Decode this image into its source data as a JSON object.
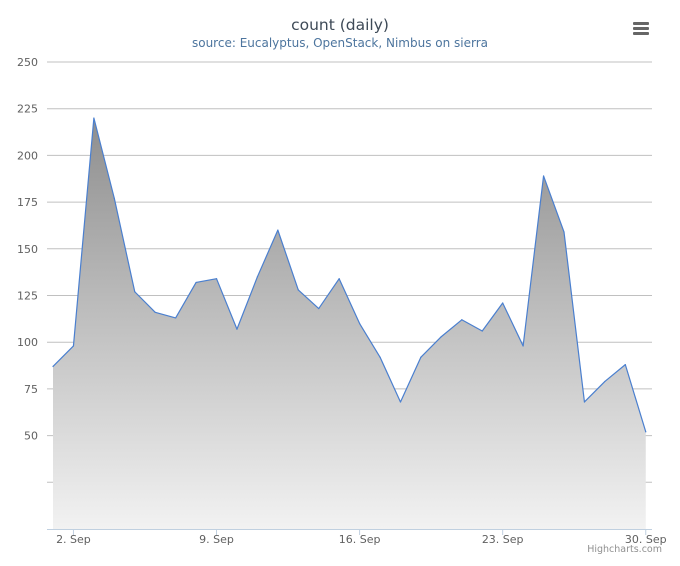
{
  "title": "count (daily)",
  "subtitle": "source: Eucalyptus, OpenStack, Nimbus on sierra",
  "credits": "Highcharts.com",
  "menu": {
    "icon": "hamburger-menu-icon"
  },
  "colors": {
    "line": "#4a7fcf",
    "fill_top": "#8e8e8e",
    "fill_bottom": "#f2f2f2",
    "grid": "#c0c0c0"
  },
  "chart_data": {
    "type": "area",
    "title": "count (daily)",
    "subtitle": "source: Eucalyptus, OpenStack, Nimbus on sierra",
    "x": [
      "1. Sep",
      "2. Sep",
      "3. Sep",
      "4. Sep",
      "5. Sep",
      "6. Sep",
      "7. Sep",
      "8. Sep",
      "9. Sep",
      "10. Sep",
      "11. Sep",
      "12. Sep",
      "13. Sep",
      "14. Sep",
      "15. Sep",
      "16. Sep",
      "17. Sep",
      "18. Sep",
      "19. Sep",
      "20. Sep",
      "21. Sep",
      "22. Sep",
      "23. Sep",
      "24. Sep",
      "25. Sep",
      "26. Sep",
      "27. Sep",
      "28. Sep",
      "29. Sep",
      "30. Sep"
    ],
    "values": [
      87,
      98,
      220,
      177,
      127,
      116,
      113,
      132,
      134,
      107,
      135,
      160,
      128,
      118,
      134,
      110,
      92,
      68,
      92,
      103,
      112,
      106,
      121,
      98,
      189,
      159,
      68,
      79,
      88,
      52
    ],
    "x_tick_labels": [
      "2. Sep",
      "9. Sep",
      "16. Sep",
      "23. Sep",
      "30. Sep"
    ],
    "y_tick_labels": [
      "50",
      "75",
      "100",
      "125",
      "150",
      "175",
      "200",
      "225",
      "250"
    ],
    "ylim": [
      0,
      250
    ],
    "grid": true,
    "legend": "none"
  }
}
